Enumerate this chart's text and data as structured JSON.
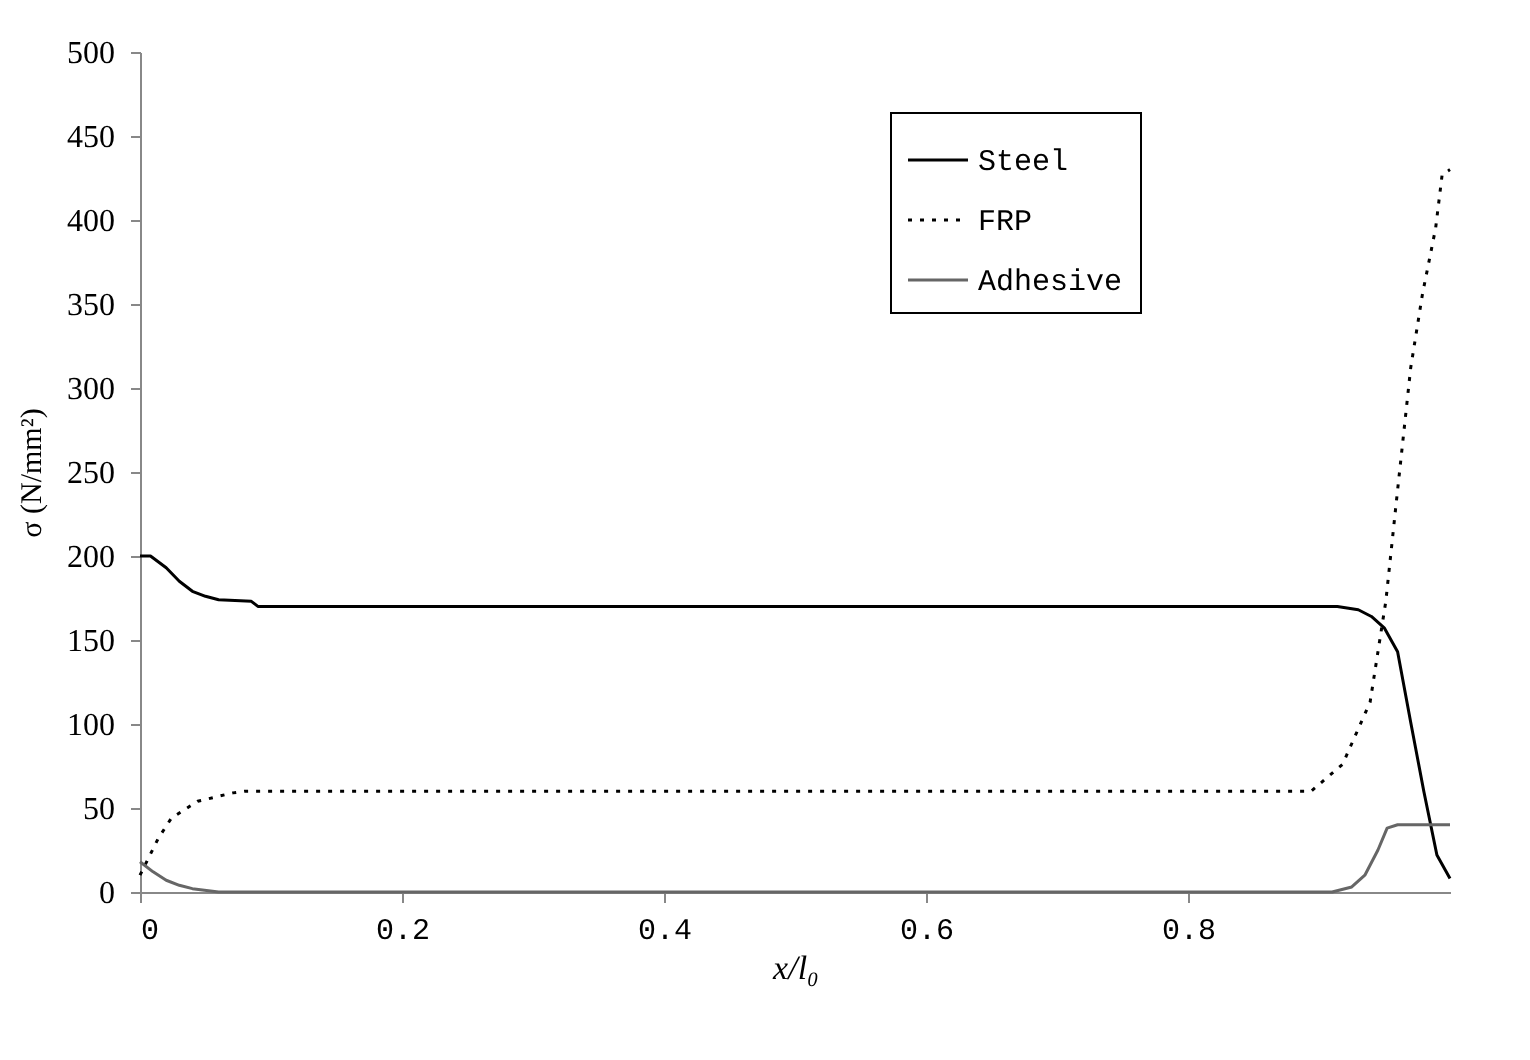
{
  "chart_data": {
    "type": "line",
    "xlabel": "x/l₀",
    "ylabel": "σ (N/mm²)",
    "xlim": [
      0,
      1
    ],
    "xticks": [
      0,
      0.2,
      0.4,
      0.6,
      0.8
    ],
    "ylim": [
      0,
      500
    ],
    "yticks": [
      0,
      50,
      100,
      150,
      200,
      250,
      300,
      350,
      400,
      450,
      500
    ],
    "grid": false,
    "legend": "top right",
    "marker": "none",
    "series": [
      {
        "name": "Steel",
        "color": "#000000",
        "line_style": "solid",
        "x": [
          0,
          0.008,
          0.02,
          0.03,
          0.04,
          0.05,
          0.06,
          0.085,
          0.09,
          0.914,
          0.93,
          0.94,
          0.95,
          0.96,
          0.97,
          0.98,
          0.99,
          1.0
        ],
        "values": [
          200,
          200,
          193,
          185,
          179,
          176,
          174,
          173,
          170,
          170,
          168,
          164,
          157,
          143,
          101,
          60,
          22,
          8
        ]
      },
      {
        "name": "FRP",
        "color": "#000000",
        "line_style": "dotted",
        "x": [
          0,
          0.014,
          0.024,
          0.044,
          0.071,
          0.08,
          0.894,
          0.918,
          0.939,
          0.951,
          0.959,
          0.97,
          0.979,
          0.989,
          0.994,
          1.0
        ],
        "values": [
          10,
          32,
          44,
          54,
          59,
          60,
          60,
          76,
          113,
          173,
          232,
          312,
          356,
          395,
          427,
          430
        ]
      },
      {
        "name": "Adhesive",
        "color": "#666666",
        "line_style": "solid",
        "x": [
          0,
          0.01,
          0.02,
          0.03,
          0.04,
          0.06,
          0.91,
          0.925,
          0.935,
          0.945,
          0.952,
          0.96,
          1.0
        ],
        "values": [
          18,
          12,
          7,
          4,
          2,
          0,
          0,
          3,
          10,
          25,
          38,
          40,
          40
        ]
      }
    ]
  }
}
